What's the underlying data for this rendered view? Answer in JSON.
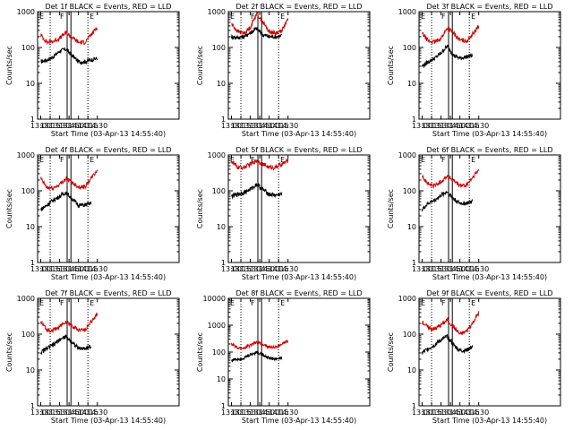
{
  "panel_common": {
    "title_suffix": "BLACK = Events, RED = LLD",
    "ylabel": "Counts/sec",
    "xlabel": "Start Time (03-Apr-13 14:55:40)",
    "x_ticks": [
      "13:00",
      "13:15",
      "13:30",
      "13:45",
      "14:00",
      "14:15",
      "14:30"
    ],
    "markers": {
      "E": "E",
      "F": "F"
    }
  },
  "colors": {
    "events": "#000000",
    "lld": "#cc0000",
    "axes": "#000000"
  },
  "chart_data": [
    {
      "type": "line",
      "detector": "Det 1f",
      "yscale": "log",
      "y_ticks": [
        "1",
        "10",
        "100",
        "1000"
      ],
      "ylim": [
        1,
        1000
      ],
      "series": [
        {
          "name": "BLACK = Events",
          "x": [
            "13:00",
            "13:10",
            "13:20",
            "13:30",
            "13:40",
            "13:50",
            "14:00",
            "14:10",
            "14:20",
            "14:30"
          ],
          "values": [
            40,
            45,
            55,
            80,
            90,
            60,
            40,
            40,
            45,
            50
          ]
        },
        {
          "name": "RED = LLD",
          "x": [
            "13:00",
            "13:10",
            "13:20",
            "13:30",
            "13:40",
            "13:50",
            "14:00",
            "14:10",
            "14:20",
            "14:30"
          ],
          "values": [
            220,
            140,
            150,
            180,
            260,
            190,
            140,
            140,
            220,
            380
          ]
        }
      ]
    },
    {
      "type": "line",
      "detector": "Det 2f",
      "yscale": "log",
      "y_ticks": [
        "1",
        "10",
        "100",
        "1000"
      ],
      "ylim": [
        1,
        1000
      ],
      "series": [
        {
          "name": "BLACK = Events",
          "x": [
            "13:00",
            "13:10",
            "13:20",
            "13:30",
            "13:40",
            "13:50",
            "14:00",
            "14:10",
            "14:20"
          ],
          "values": [
            200,
            190,
            200,
            260,
            340,
            230,
            200,
            200,
            210
          ]
        },
        {
          "name": "RED = LLD",
          "x": [
            "13:00",
            "13:10",
            "13:20",
            "13:30",
            "13:40",
            "13:50",
            "14:00",
            "14:10",
            "14:20",
            "14:30"
          ],
          "values": [
            450,
            280,
            250,
            360,
            900,
            500,
            280,
            250,
            300,
            600
          ]
        }
      ]
    },
    {
      "type": "line",
      "detector": "Det 3f",
      "yscale": "log",
      "y_ticks": [
        "1",
        "10",
        "100",
        "1000"
      ],
      "ylim": [
        1,
        1000
      ],
      "series": [
        {
          "name": "BLACK = Events",
          "x": [
            "13:00",
            "13:10",
            "13:20",
            "13:30",
            "13:40",
            "13:50",
            "14:00",
            "14:10",
            "14:20"
          ],
          "values": [
            30,
            40,
            50,
            70,
            110,
            60,
            50,
            55,
            60
          ]
        },
        {
          "name": "RED = LLD",
          "x": [
            "13:00",
            "13:10",
            "13:20",
            "13:30",
            "13:40",
            "13:50",
            "14:00",
            "14:10",
            "14:20",
            "14:30"
          ],
          "values": [
            250,
            150,
            140,
            180,
            350,
            250,
            160,
            150,
            230,
            400
          ]
        }
      ]
    },
    {
      "type": "line",
      "detector": "Det 4f",
      "yscale": "log",
      "y_ticks": [
        "1",
        "10",
        "100",
        "1000"
      ],
      "ylim": [
        1,
        1000
      ],
      "series": [
        {
          "name": "BLACK = Events",
          "x": [
            "13:00",
            "13:10",
            "13:20",
            "13:30",
            "13:40",
            "13:50",
            "14:00",
            "14:10",
            "14:20"
          ],
          "values": [
            30,
            40,
            55,
            70,
            90,
            60,
            40,
            40,
            45
          ]
        },
        {
          "name": "RED = LLD",
          "x": [
            "13:00",
            "13:10",
            "13:20",
            "13:30",
            "13:40",
            "13:50",
            "14:00",
            "14:10",
            "14:20",
            "14:30"
          ],
          "values": [
            220,
            120,
            120,
            150,
            220,
            170,
            130,
            130,
            220,
            380
          ]
        }
      ]
    },
    {
      "type": "line",
      "detector": "Det 5f",
      "yscale": "log",
      "y_ticks": [
        "1",
        "10",
        "100",
        "1000"
      ],
      "ylim": [
        1,
        1000
      ],
      "series": [
        {
          "name": "BLACK = Events",
          "x": [
            "13:00",
            "13:10",
            "13:20",
            "13:30",
            "13:40",
            "13:50",
            "14:00",
            "14:10",
            "14:20"
          ],
          "values": [
            70,
            80,
            90,
            110,
            150,
            110,
            80,
            75,
            80
          ]
        },
        {
          "name": "RED = LLD",
          "x": [
            "13:00",
            "13:10",
            "13:20",
            "13:30",
            "13:40",
            "13:50",
            "14:00",
            "14:10",
            "14:20",
            "14:30"
          ],
          "values": [
            650,
            450,
            450,
            550,
            700,
            550,
            450,
            450,
            550,
            700
          ]
        }
      ]
    },
    {
      "type": "line",
      "detector": "Det 6f",
      "yscale": "log",
      "y_ticks": [
        "1",
        "10",
        "100",
        "1000"
      ],
      "ylim": [
        1,
        1000
      ],
      "series": [
        {
          "name": "BLACK = Events",
          "x": [
            "13:00",
            "13:10",
            "13:20",
            "13:30",
            "13:40",
            "13:50",
            "14:00",
            "14:10",
            "14:20"
          ],
          "values": [
            30,
            45,
            55,
            75,
            95,
            60,
            45,
            45,
            50
          ]
        },
        {
          "name": "RED = LLD",
          "x": [
            "13:00",
            "13:10",
            "13:20",
            "13:30",
            "13:40",
            "13:50",
            "14:00",
            "14:10",
            "14:20",
            "14:30"
          ],
          "values": [
            260,
            150,
            140,
            180,
            260,
            190,
            140,
            140,
            230,
            380
          ]
        }
      ]
    },
    {
      "type": "line",
      "detector": "Det 7f",
      "yscale": "log",
      "y_ticks": [
        "1",
        "10",
        "100",
        "1000"
      ],
      "ylim": [
        1,
        1000
      ],
      "series": [
        {
          "name": "BLACK = Events",
          "x": [
            "13:00",
            "13:10",
            "13:20",
            "13:30",
            "13:40",
            "13:50",
            "14:00",
            "14:10",
            "14:20"
          ],
          "values": [
            30,
            40,
            50,
            70,
            85,
            60,
            40,
            40,
            45
          ]
        },
        {
          "name": "RED = LLD",
          "x": [
            "13:00",
            "13:10",
            "13:20",
            "13:30",
            "13:40",
            "13:50",
            "14:00",
            "14:10",
            "14:20",
            "14:30"
          ],
          "values": [
            220,
            130,
            130,
            160,
            230,
            170,
            130,
            130,
            220,
            380
          ]
        }
      ]
    },
    {
      "type": "line",
      "detector": "Det 8f",
      "yscale": "log",
      "y_ticks": [
        "1",
        "10",
        "100",
        "1000",
        "10000"
      ],
      "ylim": [
        1,
        10000
      ],
      "series": [
        {
          "name": "BLACK = Events",
          "x": [
            "13:00",
            "13:10",
            "13:20",
            "13:30",
            "13:40",
            "13:50",
            "14:00",
            "14:10",
            "14:20"
          ],
          "values": [
            50,
            55,
            60,
            80,
            100,
            80,
            60,
            55,
            60
          ]
        },
        {
          "name": "RED = LLD",
          "x": [
            "13:00",
            "13:10",
            "13:20",
            "13:30",
            "13:40",
            "13:50",
            "14:00",
            "14:10",
            "14:20",
            "14:30"
          ],
          "values": [
            200,
            140,
            140,
            180,
            240,
            200,
            150,
            150,
            200,
            250
          ]
        }
      ]
    },
    {
      "type": "line",
      "detector": "Det 9f",
      "yscale": "log",
      "y_ticks": [
        "1",
        "10",
        "100",
        "1000"
      ],
      "ylim": [
        1,
        1000
      ],
      "series": [
        {
          "name": "BLACK = Events",
          "x": [
            "13:00",
            "13:10",
            "13:20",
            "13:30",
            "13:40",
            "13:50",
            "14:00",
            "14:10",
            "14:20"
          ],
          "values": [
            30,
            40,
            50,
            70,
            85,
            50,
            35,
            35,
            45
          ]
        },
        {
          "name": "RED = LLD",
          "x": [
            "13:00",
            "13:10",
            "13:20",
            "13:30",
            "13:40",
            "13:50",
            "14:00",
            "14:10",
            "14:20",
            "14:30"
          ],
          "values": [
            220,
            150,
            140,
            180,
            250,
            160,
            100,
            120,
            200,
            400
          ]
        }
      ]
    }
  ]
}
